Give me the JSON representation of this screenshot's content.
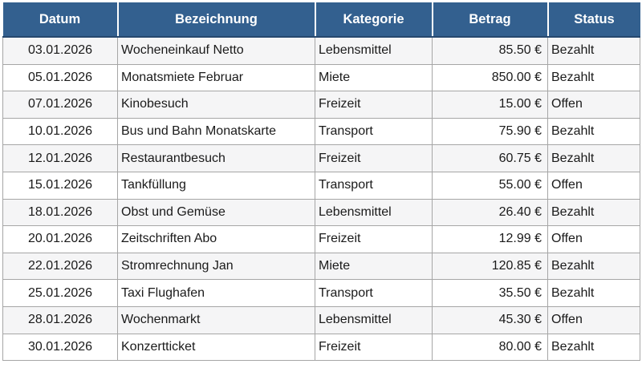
{
  "table": {
    "columns": [
      {
        "key": "datum",
        "label": "Datum"
      },
      {
        "key": "bezeichnung",
        "label": "Bezeichnung"
      },
      {
        "key": "kategorie",
        "label": "Kategorie"
      },
      {
        "key": "betrag",
        "label": "Betrag"
      },
      {
        "key": "status",
        "label": "Status"
      }
    ],
    "rows": [
      {
        "datum": "03.01.2026",
        "bezeichnung": "Wocheneinkauf Netto",
        "kategorie": "Lebensmittel",
        "betrag": "85.50 €",
        "status": "Bezahlt"
      },
      {
        "datum": "05.01.2026",
        "bezeichnung": "Monatsmiete Februar",
        "kategorie": "Miete",
        "betrag": "850.00 €",
        "status": "Bezahlt"
      },
      {
        "datum": "07.01.2026",
        "bezeichnung": "Kinobesuch",
        "kategorie": "Freizeit",
        "betrag": "15.00 €",
        "status": "Offen"
      },
      {
        "datum": "10.01.2026",
        "bezeichnung": "Bus und Bahn Monatskarte",
        "kategorie": "Transport",
        "betrag": "75.90 €",
        "status": "Bezahlt"
      },
      {
        "datum": "12.01.2026",
        "bezeichnung": "Restaurantbesuch",
        "kategorie": "Freizeit",
        "betrag": "60.75 €",
        "status": "Bezahlt"
      },
      {
        "datum": "15.01.2026",
        "bezeichnung": "Tankfüllung",
        "kategorie": "Transport",
        "betrag": "55.00 €",
        "status": "Offen"
      },
      {
        "datum": "18.01.2026",
        "bezeichnung": "Obst und Gemüse",
        "kategorie": "Lebensmittel",
        "betrag": "26.40 €",
        "status": "Bezahlt"
      },
      {
        "datum": "20.01.2026",
        "bezeichnung": "Zeitschriften Abo",
        "kategorie": "Freizeit",
        "betrag": "12.99 €",
        "status": "Offen"
      },
      {
        "datum": "22.01.2026",
        "bezeichnung": "Stromrechnung Jan",
        "kategorie": "Miete",
        "betrag": "120.85 €",
        "status": "Bezahlt"
      },
      {
        "datum": "25.01.2026",
        "bezeichnung": "Taxi Flughafen",
        "kategorie": "Transport",
        "betrag": "35.50 €",
        "status": "Bezahlt"
      },
      {
        "datum": "28.01.2026",
        "bezeichnung": "Wochenmarkt",
        "kategorie": "Lebensmittel",
        "betrag": "45.30 €",
        "status": "Offen"
      },
      {
        "datum": "30.01.2026",
        "bezeichnung": "Konzertticket",
        "kategorie": "Freizeit",
        "betrag": "80.00 €",
        "status": "Bezahlt"
      }
    ]
  },
  "colors": {
    "header_bg": "#33608F",
    "header_text": "#FFFFFF",
    "header_bottom_border": "#26486E",
    "header_separator": "#FFFFFF",
    "row_alt_bg": "#F5F5F6",
    "row_bg": "#FFFFFF",
    "grid_border": "#A6A6A6",
    "cell_text": "#1A1A1A"
  }
}
